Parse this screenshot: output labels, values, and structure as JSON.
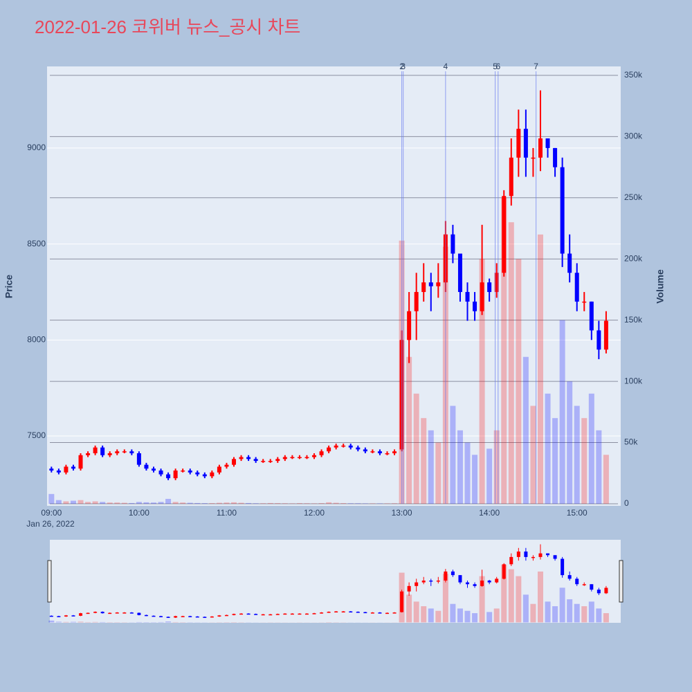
{
  "chart_data": {
    "type": "candlestick",
    "title": "2022-01-26 코위버 뉴스_공시 차트",
    "ylabel": "Price",
    "y2label": "Volume",
    "x_date_label": "Jan 26, 2022",
    "increasing_color": "#ff0000",
    "decreasing_color": "#0000ff",
    "x": [
      "2022-01-26 09:00",
      "2022-01-26 09:05",
      "2022-01-26 09:10",
      "2022-01-26 09:15",
      "2022-01-26 09:20",
      "2022-01-26 09:25",
      "2022-01-26 09:30",
      "2022-01-26 09:35",
      "2022-01-26 09:40",
      "2022-01-26 09:45",
      "2022-01-26 09:50",
      "2022-01-26 09:55",
      "2022-01-26 10:00",
      "2022-01-26 10:05",
      "2022-01-26 10:10",
      "2022-01-26 10:15",
      "2022-01-26 10:20",
      "2022-01-26 10:25",
      "2022-01-26 10:30",
      "2022-01-26 10:35",
      "2022-01-26 10:40",
      "2022-01-26 10:45",
      "2022-01-26 10:50",
      "2022-01-26 10:55",
      "2022-01-26 11:00",
      "2022-01-26 11:05",
      "2022-01-26 11:10",
      "2022-01-26 11:15",
      "2022-01-26 11:20",
      "2022-01-26 11:25",
      "2022-01-26 11:30",
      "2022-01-26 11:35",
      "2022-01-26 11:40",
      "2022-01-26 11:45",
      "2022-01-26 11:50",
      "2022-01-26 11:55",
      "2022-01-26 12:00",
      "2022-01-26 12:05",
      "2022-01-26 12:10",
      "2022-01-26 12:15",
      "2022-01-26 12:20",
      "2022-01-26 12:25",
      "2022-01-26 12:30",
      "2022-01-26 12:35",
      "2022-01-26 12:40",
      "2022-01-26 12:45",
      "2022-01-26 12:50",
      "2022-01-26 12:55",
      "2022-01-26 13:00",
      "2022-01-26 13:05",
      "2022-01-26 13:10",
      "2022-01-26 13:15",
      "2022-01-26 13:20",
      "2022-01-26 13:25",
      "2022-01-26 13:30",
      "2022-01-26 13:35",
      "2022-01-26 13:40",
      "2022-01-26 13:45",
      "2022-01-26 13:50",
      "2022-01-26 13:55",
      "2022-01-26 14:00",
      "2022-01-26 14:05",
      "2022-01-26 14:10",
      "2022-01-26 14:15",
      "2022-01-26 14:20",
      "2022-01-26 14:25",
      "2022-01-26 14:30",
      "2022-01-26 14:35",
      "2022-01-26 14:40",
      "2022-01-26 14:45",
      "2022-01-26 14:50",
      "2022-01-26 14:55",
      "2022-01-26 15:00",
      "2022-01-26 15:05",
      "2022-01-26 15:10",
      "2022-01-26 15:15",
      "2022-01-26 15:20"
    ],
    "open": [
      7330,
      7320,
      7310,
      7340,
      7330,
      7400,
      7410,
      7440,
      7400,
      7410,
      7420,
      7420,
      7410,
      7350,
      7330,
      7320,
      7300,
      7280,
      7320,
      7320,
      7310,
      7300,
      7290,
      7310,
      7340,
      7350,
      7380,
      7390,
      7380,
      7370,
      7370,
      7370,
      7380,
      7390,
      7390,
      7390,
      7390,
      7400,
      7420,
      7440,
      7450,
      7450,
      7440,
      7430,
      7420,
      7420,
      7410,
      7410,
      7430,
      8000,
      8150,
      8250,
      8300,
      8280,
      8300,
      8550,
      8450,
      8250,
      8200,
      8150,
      8300,
      8250,
      8350,
      8750,
      8950,
      9100,
      8950,
      8950,
      9050,
      9000,
      8900,
      8450,
      8350,
      8200,
      8200,
      8050,
      7950
    ],
    "high": [
      7340,
      7330,
      7350,
      7350,
      7410,
      7420,
      7450,
      7450,
      7420,
      7430,
      7430,
      7430,
      7420,
      7360,
      7340,
      7330,
      7310,
      7330,
      7330,
      7330,
      7320,
      7310,
      7320,
      7350,
      7360,
      7390,
      7400,
      7400,
      7390,
      7380,
      7380,
      7390,
      7400,
      7400,
      7400,
      7400,
      7410,
      7430,
      7450,
      7460,
      7460,
      7460,
      7450,
      7440,
      7430,
      7430,
      7420,
      7430,
      8050,
      8250,
      8350,
      8400,
      8350,
      8400,
      8620,
      8600,
      8450,
      8300,
      8250,
      8600,
      8320,
      8400,
      8780,
      9050,
      9200,
      9200,
      9000,
      9300,
      9050,
      9000,
      8950,
      8550,
      8400,
      8250,
      8200,
      8100,
      8150
    ],
    "low": [
      7310,
      7300,
      7300,
      7320,
      7320,
      7390,
      7400,
      7390,
      7390,
      7400,
      7410,
      7400,
      7340,
      7320,
      7310,
      7290,
      7270,
      7270,
      7310,
      7300,
      7290,
      7280,
      7280,
      7300,
      7330,
      7340,
      7370,
      7370,
      7360,
      7360,
      7360,
      7360,
      7370,
      7380,
      7380,
      7380,
      7380,
      7390,
      7410,
      7430,
      7440,
      7430,
      7420,
      7410,
      7410,
      7400,
      7400,
      7400,
      7420,
      7880,
      8000,
      8200,
      8150,
      8220,
      8250,
      8400,
      8200,
      8100,
      8100,
      8130,
      8200,
      8220,
      8330,
      8700,
      8850,
      8850,
      8850,
      8880,
      8950,
      8850,
      8380,
      8300,
      8150,
      8150,
      8000,
      7900,
      7930
    ],
    "close": [
      7320,
      7310,
      7340,
      7330,
      7400,
      7410,
      7440,
      7400,
      7410,
      7420,
      7420,
      7410,
      7350,
      7330,
      7320,
      7300,
      7280,
      7320,
      7320,
      7310,
      7300,
      7290,
      7310,
      7340,
      7350,
      7380,
      7390,
      7380,
      7370,
      7370,
      7370,
      7380,
      7390,
      7390,
      7390,
      7390,
      7400,
      7420,
      7440,
      7450,
      7450,
      7440,
      7430,
      7420,
      7420,
      7410,
      7410,
      7420,
      8000,
      8150,
      8250,
      8300,
      8280,
      8300,
      8550,
      8450,
      8250,
      8200,
      8150,
      8300,
      8250,
      8350,
      8750,
      8950,
      9100,
      8950,
      8950,
      9050,
      9000,
      8900,
      8450,
      8350,
      8200,
      8200,
      8050,
      7950,
      8100
    ],
    "volume": [
      8000,
      3000,
      2000,
      2500,
      3000,
      1500,
      2000,
      1500,
      1000,
      1000,
      800,
      600,
      1500,
      1200,
      1000,
      1500,
      4000,
      1500,
      1000,
      800,
      600,
      500,
      500,
      800,
      1000,
      1200,
      800,
      600,
      400,
      400,
      600,
      500,
      400,
      300,
      500,
      400,
      300,
      500,
      1200,
      800,
      500,
      400,
      400,
      300,
      300,
      300,
      300,
      400,
      215000,
      120000,
      90000,
      70000,
      60000,
      50000,
      210000,
      80000,
      60000,
      50000,
      40000,
      200000,
      45000,
      60000,
      250000,
      230000,
      200000,
      120000,
      80000,
      220000,
      90000,
      70000,
      150000,
      100000,
      80000,
      70000,
      90000,
      60000,
      40000
    ],
    "news": [
      {
        "label": "2",
        "x": "2022-01-26 13:00"
      },
      {
        "label": "3",
        "x": "2022-01-26 13:01"
      },
      {
        "label": "4",
        "x": "2022-01-26 13:30"
      },
      {
        "label": "5",
        "x": "2022-01-26 14:04"
      },
      {
        "label": "6",
        "x": "2022-01-26 14:06"
      },
      {
        "label": "7",
        "x": "2022-01-26 14:32"
      }
    ],
    "xlim": [
      "2022-01-26 08:57",
      "2022-01-26 15:30"
    ],
    "xticks": [
      {
        "value": "2022-01-26 09:00",
        "label": "09:00"
      },
      {
        "value": "2022-01-26 10:00",
        "label": "10:00"
      },
      {
        "value": "2022-01-26 11:00",
        "label": "11:00"
      },
      {
        "value": "2022-01-26 12:00",
        "label": "12:00"
      },
      {
        "value": "2022-01-26 13:00",
        "label": "13:00"
      },
      {
        "value": "2022-01-26 14:00",
        "label": "14:00"
      },
      {
        "value": "2022-01-26 15:00",
        "label": "15:00"
      }
    ],
    "ylim": [
      7136,
      9425
    ],
    "yticks": [
      7500,
      8000,
      8500,
      9000
    ],
    "y2lim": [
      -1700,
      357300
    ],
    "y2ticks": [
      0,
      {
        "value": 50000,
        "label": "50k"
      },
      {
        "value": 100000,
        "label": "100k"
      },
      {
        "value": 150000,
        "label": "150k"
      },
      {
        "value": 200000,
        "label": "200k"
      },
      {
        "value": 250000,
        "label": "250k"
      },
      {
        "value": 300000,
        "label": "300k"
      },
      {
        "value": 350000,
        "label": "350k"
      }
    ],
    "grid": true
  }
}
